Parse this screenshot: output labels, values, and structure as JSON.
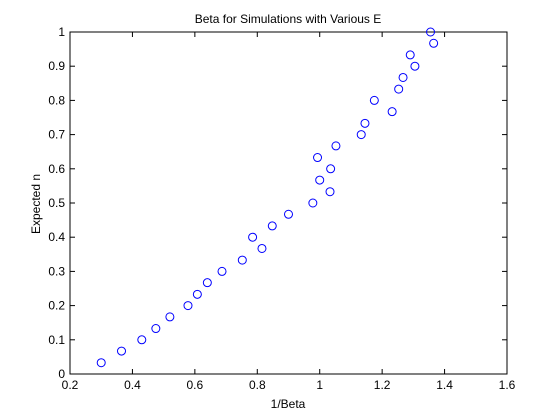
{
  "chart_data": {
    "type": "scatter",
    "title": "Beta for Simulations with Various E",
    "xlabel": "1/Beta",
    "ylabel": "Expected n",
    "xlim": [
      0.2,
      1.6
    ],
    "ylim": [
      0,
      1
    ],
    "xticks": [
      0.2,
      0.4,
      0.6,
      0.8,
      1,
      1.2,
      1.4,
      1.6
    ],
    "yticks": [
      0,
      0.1,
      0.2,
      0.3,
      0.4,
      0.5,
      0.6,
      0.7,
      0.8,
      0.9,
      1
    ],
    "xtick_labels": [
      "0.2",
      "0.4",
      "0.6",
      "0.8",
      "1",
      "1.2",
      "1.4",
      "1.6"
    ],
    "ytick_labels": [
      "0",
      "0.1",
      "0.2",
      "0.3",
      "0.4",
      "0.5",
      "0.6",
      "0.7",
      "0.8",
      "0.9",
      "1"
    ],
    "grid": false,
    "marker": "circle",
    "marker_color": "#0000ff",
    "points": [
      {
        "x": 0.3,
        "y": 0.033
      },
      {
        "x": 0.365,
        "y": 0.067
      },
      {
        "x": 0.43,
        "y": 0.1
      },
      {
        "x": 0.475,
        "y": 0.133
      },
      {
        "x": 0.52,
        "y": 0.167
      },
      {
        "x": 0.578,
        "y": 0.2
      },
      {
        "x": 0.608,
        "y": 0.233
      },
      {
        "x": 0.64,
        "y": 0.267
      },
      {
        "x": 0.687,
        "y": 0.3
      },
      {
        "x": 0.752,
        "y": 0.333
      },
      {
        "x": 0.815,
        "y": 0.367
      },
      {
        "x": 0.785,
        "y": 0.4
      },
      {
        "x": 0.848,
        "y": 0.433
      },
      {
        "x": 0.9,
        "y": 0.467
      },
      {
        "x": 0.978,
        "y": 0.5
      },
      {
        "x": 1.033,
        "y": 0.533
      },
      {
        "x": 1.0,
        "y": 0.567
      },
      {
        "x": 1.035,
        "y": 0.6
      },
      {
        "x": 0.993,
        "y": 0.633
      },
      {
        "x": 1.052,
        "y": 0.667
      },
      {
        "x": 1.133,
        "y": 0.7
      },
      {
        "x": 1.145,
        "y": 0.733
      },
      {
        "x": 1.232,
        "y": 0.767
      },
      {
        "x": 1.175,
        "y": 0.8
      },
      {
        "x": 1.253,
        "y": 0.833
      },
      {
        "x": 1.267,
        "y": 0.867
      },
      {
        "x": 1.305,
        "y": 0.9
      },
      {
        "x": 1.29,
        "y": 0.933
      },
      {
        "x": 1.365,
        "y": 0.967
      },
      {
        "x": 1.355,
        "y": 1.0
      }
    ]
  }
}
